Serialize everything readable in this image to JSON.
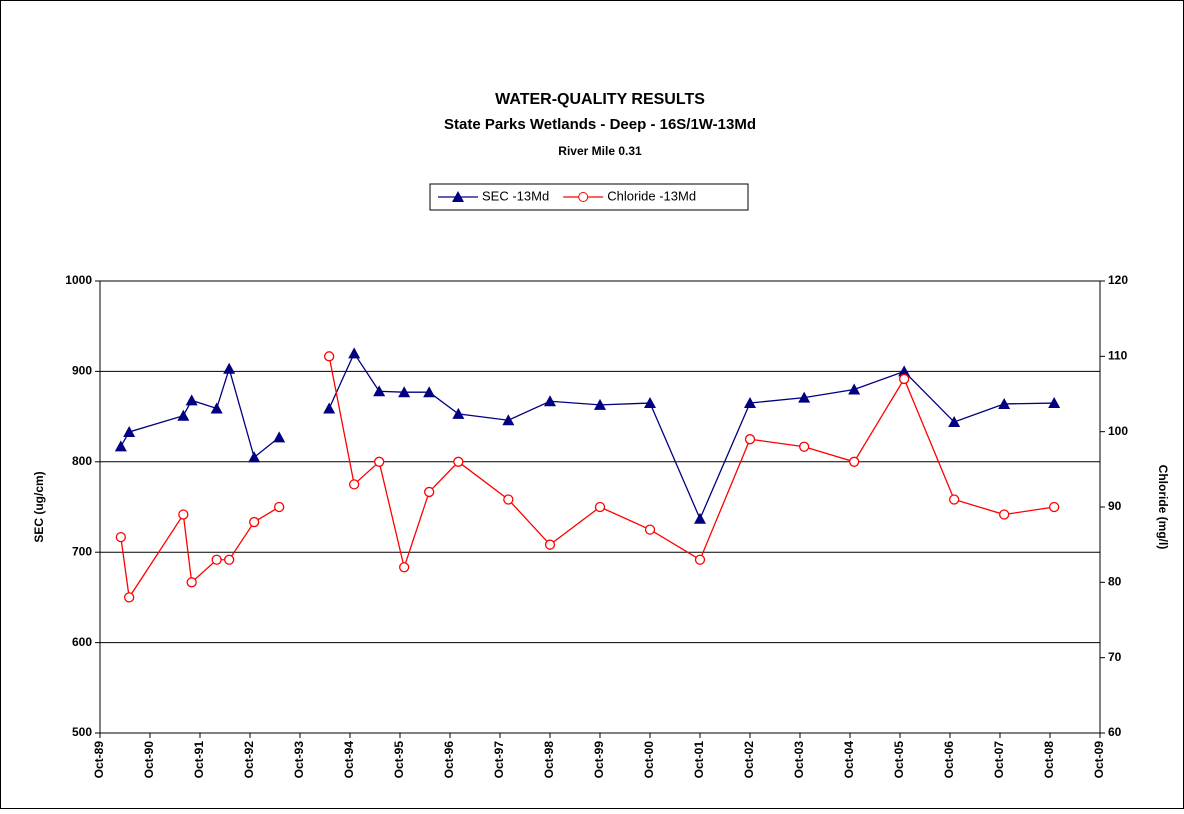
{
  "chart_data": {
    "type": "line",
    "title": "WATER-QUALITY RESULTS",
    "subtitle": "State Parks Wetlands - Deep  - 16S/1W-13Md",
    "annotation": "River Mile 0.31",
    "y_label": "SEC (ug/cm)",
    "y2_label": "Chloride (mg/l)",
    "x": [
      "1990-03",
      "1990-05",
      "1991-06",
      "1991-08",
      "1992-02",
      "1992-05",
      "1992-11",
      "1993-05",
      "1993-11",
      "1994-05",
      "1994-11",
      "1995-05",
      "1995-11",
      "1996-05",
      "1996-12",
      "1997-12",
      "1998-10",
      "1999-10",
      "2000-10",
      "2001-10",
      "2002-10",
      "2003-11",
      "2004-11",
      "2005-11",
      "2006-11",
      "2007-11",
      "2008-11"
    ],
    "series": [
      {
        "name": "SEC -13Md",
        "color": "#000080",
        "marker": "triangle",
        "values": [
          817,
          833,
          851,
          868,
          859,
          903,
          805,
          827,
          null,
          859,
          920,
          878,
          877,
          877,
          853,
          846,
          867,
          863,
          865,
          737,
          865,
          871,
          880,
          900,
          844,
          864,
          865
        ]
      },
      {
        "name": "Chloride -13Md",
        "color": "#ff0000",
        "marker": "circle",
        "axis": "y2",
        "values": [
          86,
          78,
          89,
          80,
          83,
          83,
          88,
          90,
          null,
          110,
          93,
          96,
          82,
          92,
          96,
          91,
          85,
          90,
          87,
          83,
          99,
          98,
          96,
          107,
          91,
          89,
          90
        ]
      }
    ],
    "xlim": [
      "1989-10",
      "2009-10"
    ],
    "xticks": [
      {
        "value": "1989-10",
        "label": "Oct-89"
      },
      {
        "value": "1990-10",
        "label": "Oct-90"
      },
      {
        "value": "1991-10",
        "label": "Oct-91"
      },
      {
        "value": "1992-10",
        "label": "Oct-92"
      },
      {
        "value": "1993-10",
        "label": "Oct-93"
      },
      {
        "value": "1994-10",
        "label": "Oct-94"
      },
      {
        "value": "1995-10",
        "label": "Oct-95"
      },
      {
        "value": "1996-10",
        "label": "Oct-96"
      },
      {
        "value": "1997-10",
        "label": "Oct-97"
      },
      {
        "value": "1998-10",
        "label": "Oct-98"
      },
      {
        "value": "1999-10",
        "label": "Oct-99"
      },
      {
        "value": "2000-10",
        "label": "Oct-00"
      },
      {
        "value": "2001-10",
        "label": "Oct-01"
      },
      {
        "value": "2002-10",
        "label": "Oct-02"
      },
      {
        "value": "2003-10",
        "label": "Oct-03"
      },
      {
        "value": "2004-10",
        "label": "Oct-04"
      },
      {
        "value": "2005-10",
        "label": "Oct-05"
      },
      {
        "value": "2006-10",
        "label": "Oct-06"
      },
      {
        "value": "2007-10",
        "label": "Oct-07"
      },
      {
        "value": "2008-10",
        "label": "Oct-08"
      },
      {
        "value": "2009-10",
        "label": "Oct-09"
      }
    ],
    "ylim": [
      500,
      1000
    ],
    "yticks": [
      500,
      600,
      700,
      800,
      900,
      1000
    ],
    "y2lim": [
      60,
      120
    ],
    "y2ticks": [
      60,
      70,
      80,
      90,
      100,
      110,
      120
    ],
    "grid": true
  }
}
